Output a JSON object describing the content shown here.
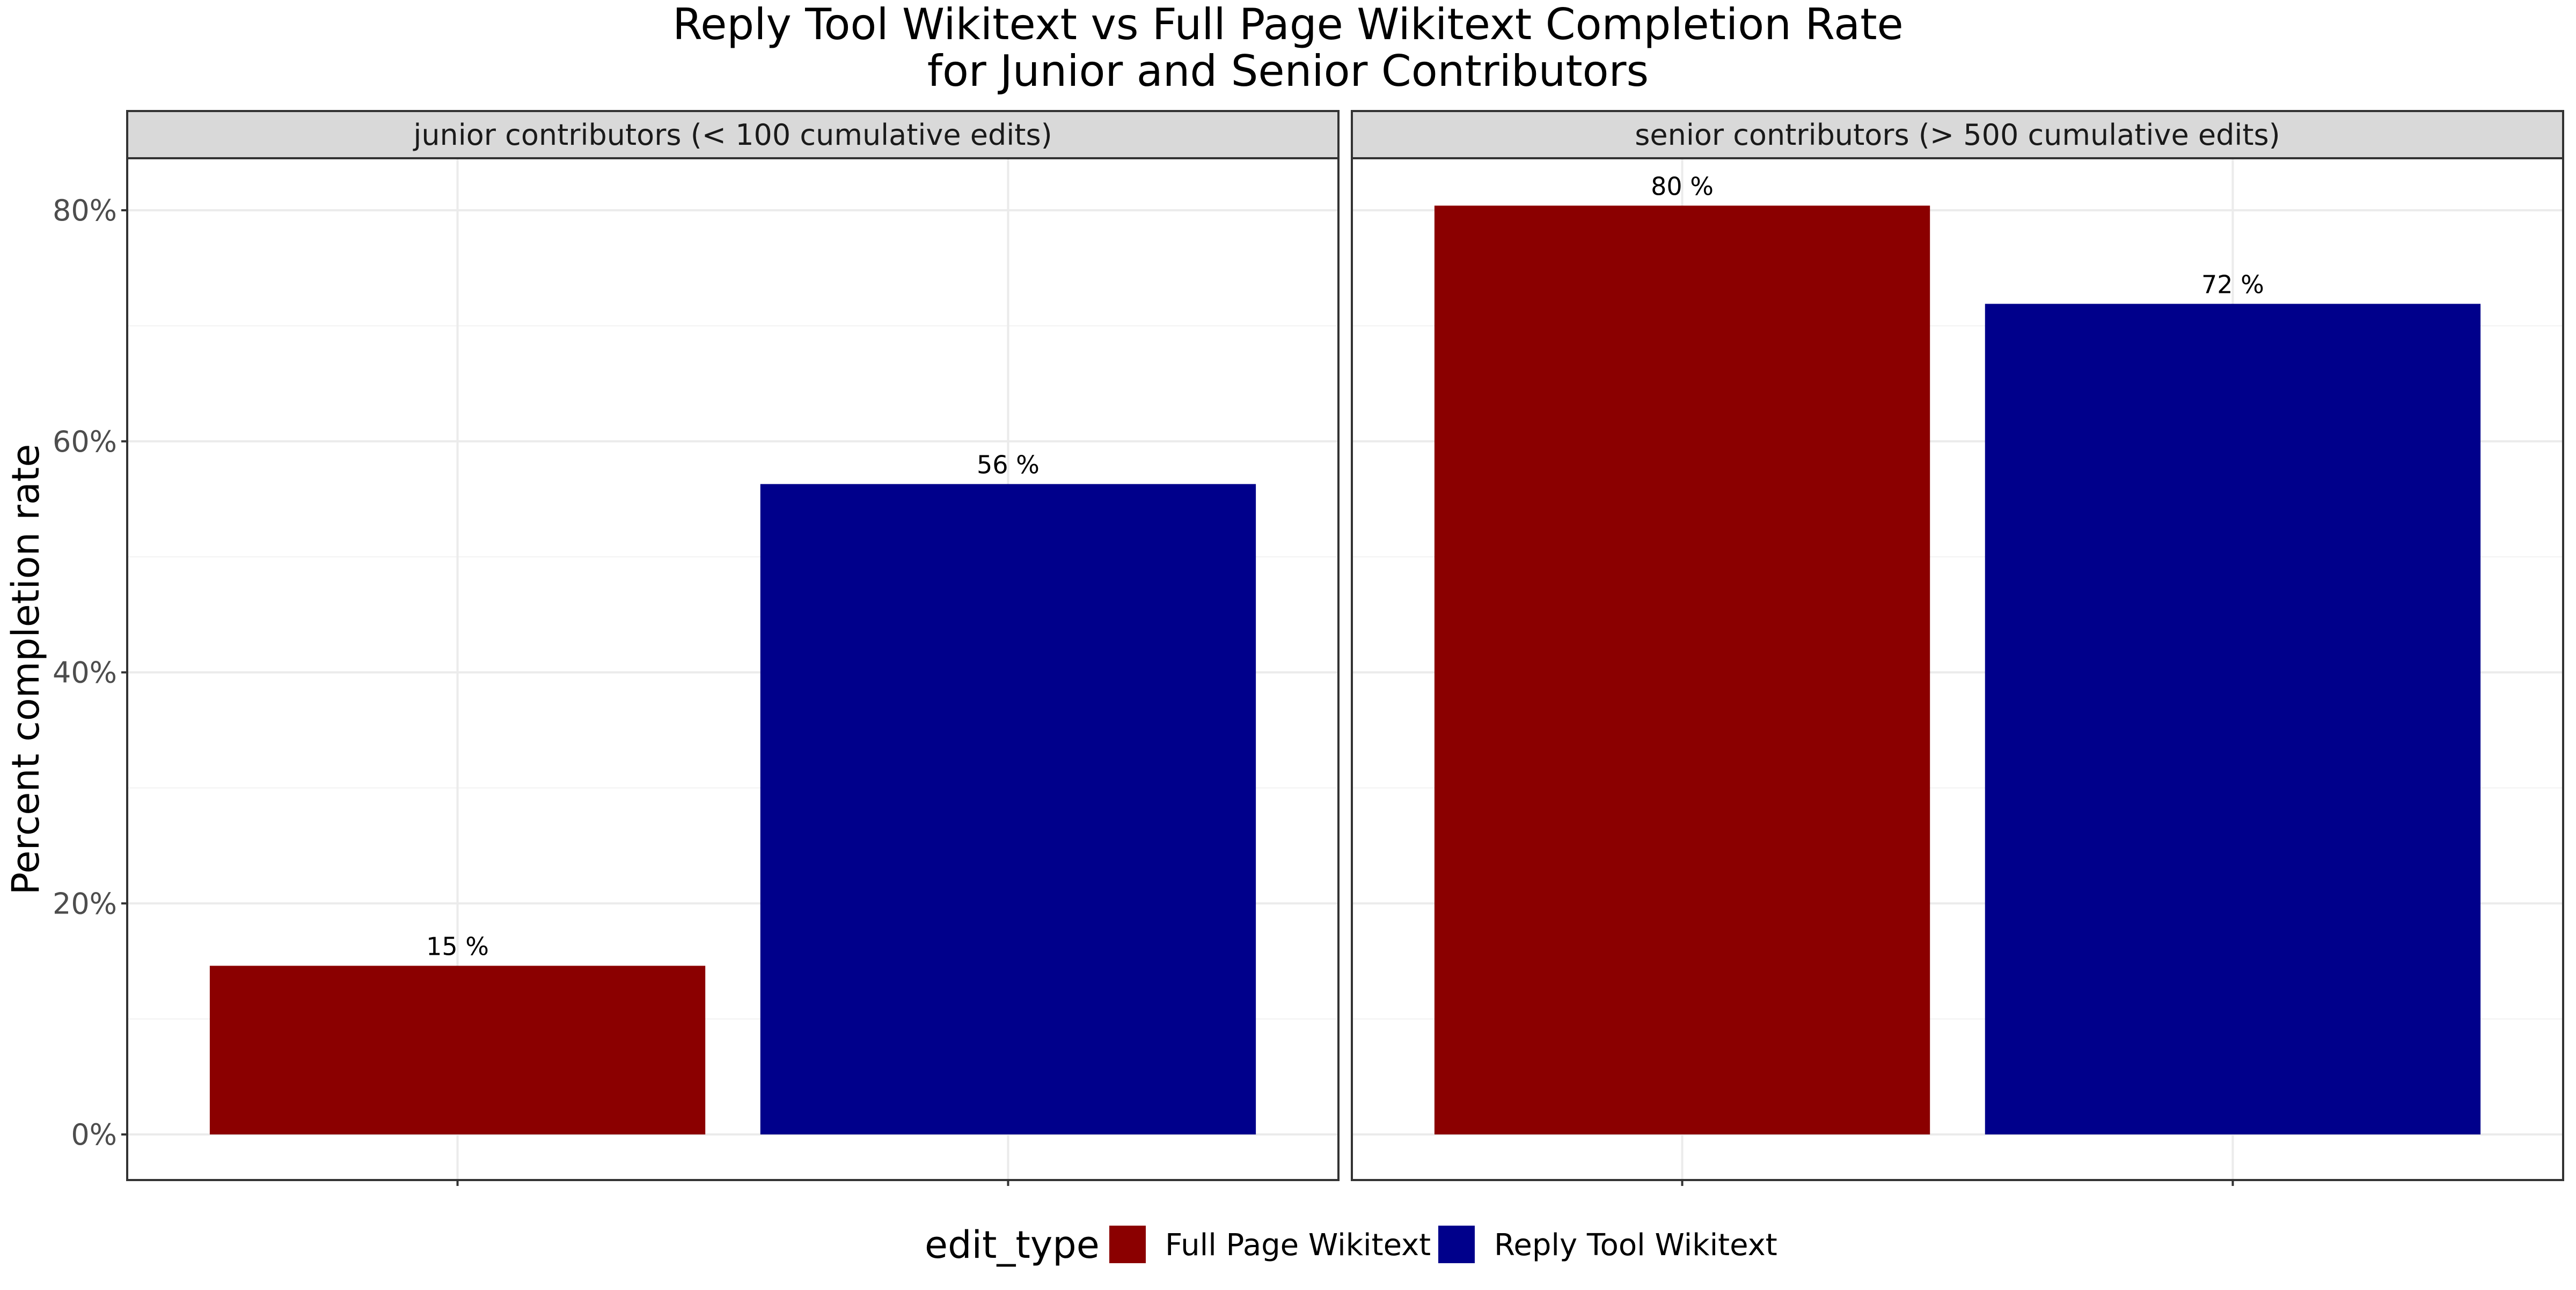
{
  "chart_data": {
    "type": "bar",
    "title_lines": [
      "Reply Tool Wikitext vs Full Page Wikitext Completion Rate",
      "for Junior and Senior Contributors"
    ],
    "ylabel": "Percent completion rate",
    "xlabel": "",
    "ylim": [
      0,
      0.85
    ],
    "y_ticks": [
      {
        "value": 0,
        "label": "0%"
      },
      {
        "value": 0.2,
        "label": "20%"
      },
      {
        "value": 0.4,
        "label": "40%"
      },
      {
        "value": 0.6,
        "label": "60%"
      },
      {
        "value": 0.8,
        "label": "80%"
      }
    ],
    "grid": true,
    "legend": {
      "position": "bottom",
      "title": "edit_type",
      "entries": [
        {
          "name": "Full Page Wikitext",
          "color": "#8B0000"
        },
        {
          "name": "Reply Tool Wikitext",
          "color": "#00008B"
        }
      ]
    },
    "panels": [
      {
        "strip_label": "junior contributors (< 100 cumulative edits)",
        "bars": [
          {
            "series": "Full Page Wikitext",
            "value": 0.146,
            "label": "15 %",
            "color": "#8B0000"
          },
          {
            "series": "Reply Tool Wikitext",
            "value": 0.563,
            "label": "56 %",
            "color": "#00008B"
          }
        ]
      },
      {
        "strip_label": "senior contributors (> 500 cumulative edits)",
        "bars": [
          {
            "series": "Full Page Wikitext",
            "value": 0.804,
            "label": "80 %",
            "color": "#8B0000"
          },
          {
            "series": "Reply Tool Wikitext",
            "value": 0.719,
            "label": "72 %",
            "color": "#00008B"
          }
        ]
      }
    ]
  }
}
